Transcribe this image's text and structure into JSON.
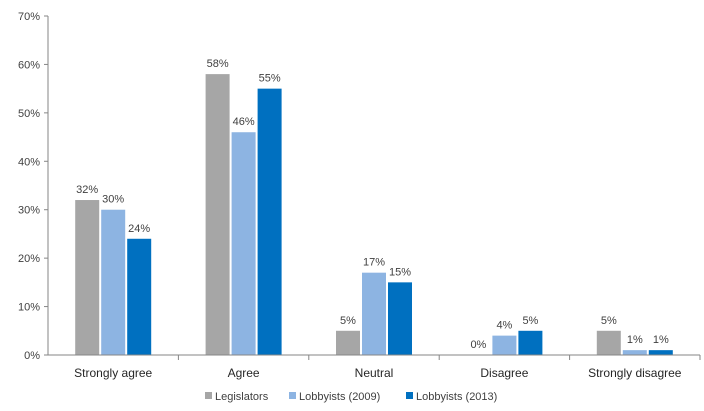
{
  "chart_data": {
    "type": "bar",
    "categories": [
      "Strongly agree",
      "Agree",
      "Neutral",
      "Disagree",
      "Strongly disagree"
    ],
    "series": [
      {
        "name": "Legislators",
        "values": [
          32,
          58,
          5,
          0,
          5
        ],
        "color": "#a6a6a6"
      },
      {
        "name": "Lobbyists (2009)",
        "values": [
          30,
          46,
          17,
          4,
          1
        ],
        "color": "#8db4e2"
      },
      {
        "name": "Lobbyists (2013)",
        "values": [
          24,
          55,
          15,
          5,
          1
        ],
        "color": "#0070c0"
      }
    ],
    "ylim": [
      0,
      70
    ],
    "yticks": [
      0,
      10,
      20,
      30,
      40,
      50,
      60,
      70
    ],
    "value_suffix": "%",
    "grid": false,
    "legend": "bottom"
  }
}
